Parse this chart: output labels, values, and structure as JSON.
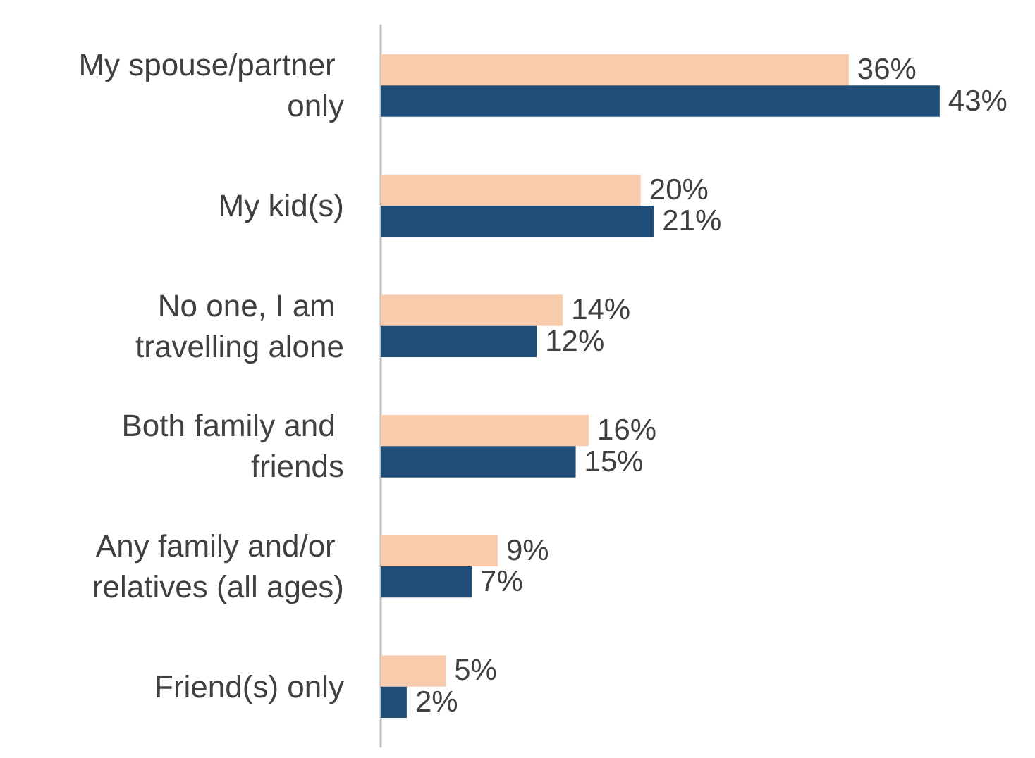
{
  "chart_data": {
    "type": "bar",
    "orientation": "horizontal",
    "categories": [
      "My spouse/partner only",
      "My kid(s)",
      "No one, I am travelling alone",
      "Both family and friends",
      "Any family and/or relatives (all ages)",
      "Friend(s) only"
    ],
    "series": [
      {
        "color": "#f8cbad",
        "values": [
          36,
          20,
          14,
          16,
          9,
          5
        ],
        "value_labels": [
          "36%",
          "20%",
          "14%",
          "16%",
          "9%",
          "5%"
        ]
      },
      {
        "color": "#1f4e79",
        "values": [
          43,
          21,
          12,
          15,
          7,
          2
        ],
        "value_labels": [
          "43%",
          "21%",
          "12%",
          "15%",
          "7%",
          "2%"
        ]
      }
    ],
    "grid": false
  }
}
